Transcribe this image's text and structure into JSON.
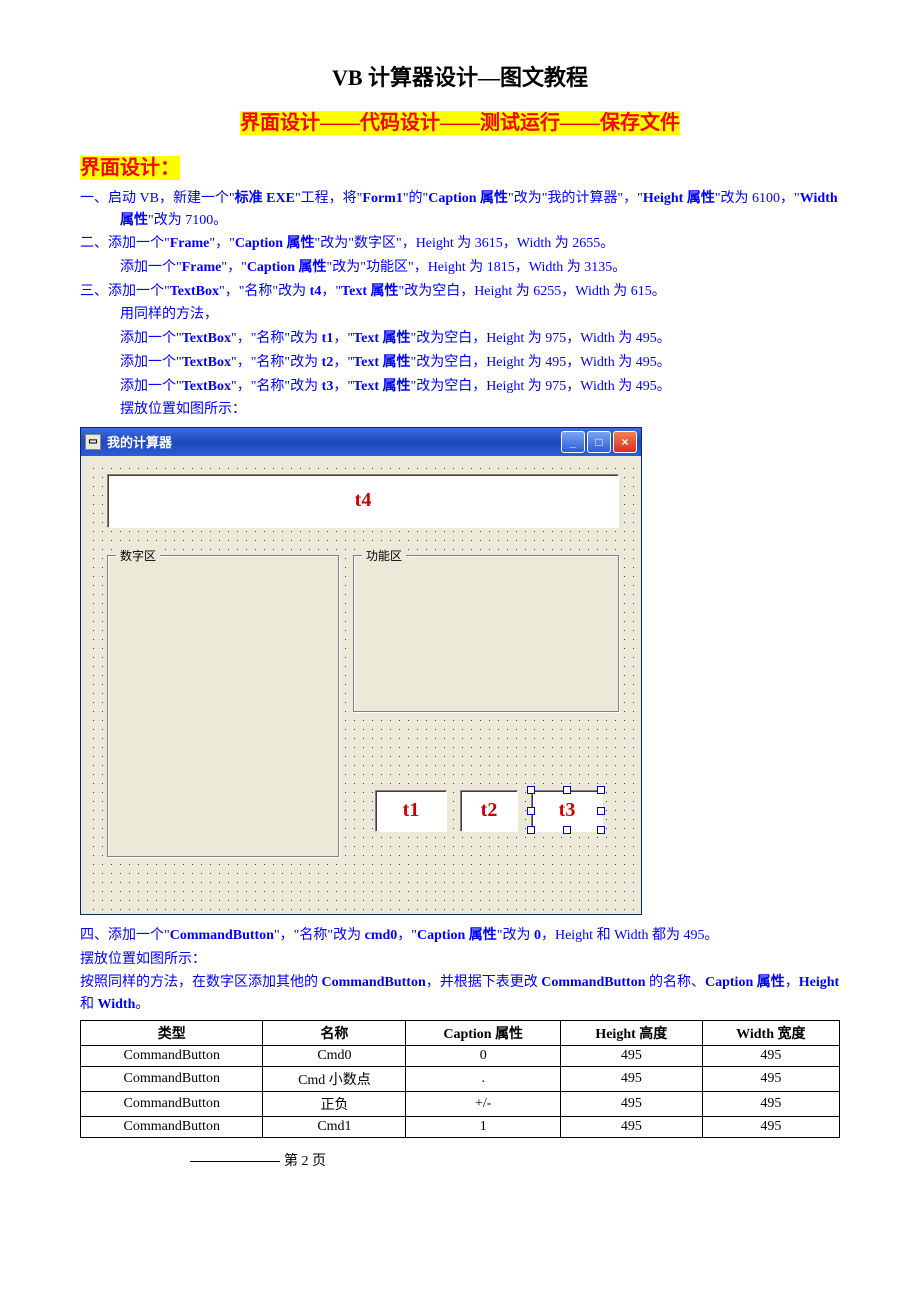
{
  "title_main": "VB 计算器设计—图文教程",
  "title_sub": "界面设计——代码设计——测试运行——保存文件",
  "section_head": "界面设计：",
  "p1a": "一、启动 VB，新建一个\"",
  "p1b": "标准 EXE",
  "p1c": "\"工程，将\"",
  "p1d": "Form1",
  "p1e": "\"的\"",
  "p1f": "Caption 属性",
  "p1g": "\"改为\"我的计算器\"，\"",
  "p1h": "Height 属性",
  "p1i": "\"改为 6100，\"",
  "p1j": "Width 属性",
  "p1k": "\"改为 7100。",
  "p2a": "二、添加一个\"",
  "p2b1": "Frame",
  "p2c": "\"，\"",
  "p2d": "Caption 属性",
  "p2e": "\"改为\"数字区\"，Height 为 3615，Width 为 2655。",
  "p2_2a": "添加一个\"",
  "p2_2b": "Frame",
  "p2_2c": "\"，\"",
  "p2_2d": "Caption 属性",
  "p2_2e": "\"改为\"功能区\"，Height 为 1815，Width 为 3135。",
  "p3a": "三、添加一个\"",
  "p3b": "TextBox",
  "p3c": "\"，\"名称\"改为 ",
  "p3d": "t4",
  "p3e": "，\"",
  "p3f": "Text 属性",
  "p3g": "\"改为空白，Height 为 6255，Width 为 615。",
  "p3_sub": "用同样的方法，",
  "p3_t1a": "添加一个\"",
  "p3_t1b": "TextBox",
  "p3_t1c": "\"，\"名称\"改为 ",
  "p3_t1d": "t1",
  "p3_t1e": "，\"",
  "p3_t1f": "Text 属性",
  "p3_t1g": "\"改为空白，Height 为 975，Width 为 495。",
  "p3_t2a": "添加一个\"",
  "p3_t2b": "TextBox",
  "p3_t2c": "\"，\"名称\"改为 ",
  "p3_t2d": "t2",
  "p3_t2e": "，\"",
  "p3_t2f": "Text 属性",
  "p3_t2g": "\"改为空白，Height 为 495，Width 为 495。",
  "p3_t3a": "添加一个\"",
  "p3_t3b": "TextBox",
  "p3_t3c": "\"，\"名称\"改为 ",
  "p3_t3d": "t3",
  "p3_t3e": "，\"",
  "p3_t3f": "Text 属性",
  "p3_t3g": "\"改为空白，Height 为 975，Width 为 495。",
  "p3_pos": "摆放位置如图所示：",
  "vb": {
    "title": "我的计算器",
    "t4": "t4",
    "t1": "t1",
    "t2": "t2",
    "t3": "t3",
    "frame1": "数字区",
    "frame2": "功能区"
  },
  "p4a": "四、添加一个\"",
  "p4b": "CommandButton",
  "p4c": "\"，\"名称\"改为 ",
  "p4d": "cmd0",
  "p4e": "，\"",
  "p4f": "Caption 属性",
  "p4g": "\"改为 ",
  "p4h": "0",
  "p4i": "，Height 和 Width 都为 495。",
  "p4_pos": "摆放位置如图所示：",
  "p5a": "按照同样的方法，在数字区添加其他的 ",
  "p5b": "CommandButton",
  "p5c": "，并根据下表更改 ",
  "p5d": "CommandButton",
  "p5e": " 的名称、",
  "p5f": "Caption 属性",
  "p5g": "，",
  "p5h": "Height",
  "p5i": " 和 ",
  "p5j": "Width",
  "p5k": "。",
  "table": {
    "headers": [
      "类型",
      "名称",
      "Caption 属性",
      "Height 高度",
      "Width 宽度"
    ],
    "rows": [
      [
        "CommandButton",
        "Cmd0",
        "0",
        "495",
        "495"
      ],
      [
        "CommandButton",
        "Cmd 小数点",
        ".",
        "495",
        "495"
      ],
      [
        "CommandButton",
        "正负",
        "+/-",
        "495",
        "495"
      ],
      [
        "CommandButton",
        "Cmd1",
        "1",
        "495",
        "495"
      ]
    ]
  },
  "footer": "第 2 页"
}
